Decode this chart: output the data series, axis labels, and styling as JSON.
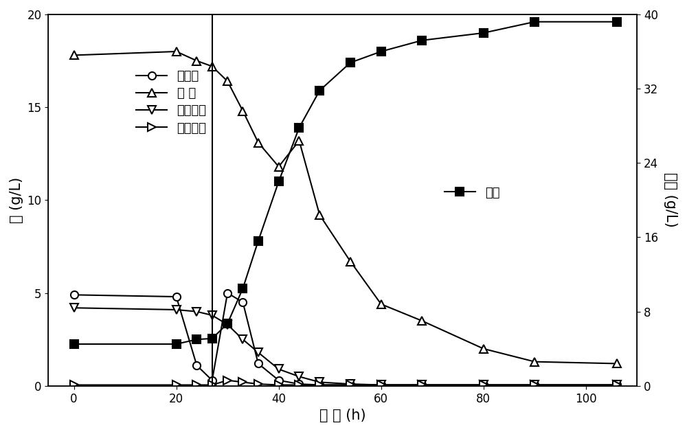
{
  "title": "",
  "xlabel": "时 间 (h)",
  "ylabel_left": "糖 (g/L)",
  "ylabel_right": "乳酸 (g/L)",
  "xlim": [
    -5,
    110
  ],
  "ylim_left": [
    0,
    20
  ],
  "ylim_right": [
    0,
    40
  ],
  "yticks_left": [
    0,
    5,
    10,
    15,
    20
  ],
  "yticks_right": [
    0,
    8,
    16,
    24,
    32,
    40
  ],
  "xticks": [
    0,
    20,
    40,
    60,
    80,
    100
  ],
  "vline_x": 27,
  "glucose": {
    "x": [
      0,
      20,
      24,
      27,
      30,
      33,
      36,
      40,
      44,
      48,
      54,
      60,
      68,
      80,
      90,
      106
    ],
    "y": [
      4.9,
      4.8,
      1.1,
      0.3,
      5.0,
      4.5,
      1.2,
      0.3,
      0.1,
      0.05,
      0.05,
      0.05,
      0.05,
      0.05,
      0.05,
      0.05
    ],
    "label": "葡萄糖",
    "marker": "o",
    "color": "black",
    "linestyle": "-"
  },
  "xylose": {
    "x": [
      0,
      20,
      24,
      27,
      30,
      33,
      36,
      40,
      44,
      48,
      54,
      60,
      68,
      80,
      90,
      106
    ],
    "y": [
      17.8,
      18.0,
      17.5,
      17.2,
      16.4,
      14.8,
      13.1,
      11.8,
      13.2,
      9.2,
      6.7,
      4.4,
      3.5,
      2.0,
      1.3,
      1.2
    ],
    "label": "木 糖",
    "marker": "^",
    "color": "black",
    "linestyle": "-"
  },
  "arabinose": {
    "x": [
      0,
      20,
      24,
      27,
      30,
      33,
      36,
      40,
      44,
      48,
      54,
      60,
      68,
      80,
      90,
      106
    ],
    "y": [
      4.2,
      4.1,
      4.0,
      3.8,
      3.3,
      2.5,
      1.8,
      0.9,
      0.5,
      0.2,
      0.1,
      0.05,
      0.05,
      0.05,
      0.05,
      0.05
    ],
    "label": "阿拉伯糖",
    "marker": "v",
    "color": "black",
    "linestyle": "-"
  },
  "cellobiose": {
    "x": [
      0,
      20,
      24,
      27,
      30,
      33,
      36,
      40,
      44,
      48,
      54,
      60,
      68,
      80,
      90,
      106
    ],
    "y": [
      0.05,
      0.05,
      0.05,
      0.05,
      0.3,
      0.2,
      0.1,
      0.05,
      0.05,
      0.05,
      0.05,
      0.05,
      0.05,
      0.05,
      0.05,
      0.05
    ],
    "label": "纤维二糖",
    "marker": ">",
    "color": "black",
    "linestyle": "-"
  },
  "lactic_acid": {
    "x": [
      0,
      20,
      24,
      27,
      30,
      33,
      36,
      40,
      44,
      48,
      54,
      60,
      68,
      80,
      90,
      106
    ],
    "y": [
      4.5,
      4.5,
      5.0,
      5.1,
      6.7,
      10.5,
      15.6,
      22.0,
      27.8,
      31.8,
      34.8,
      36.0,
      37.2,
      38.0,
      39.2,
      39.2
    ],
    "label": "乳酸",
    "marker": "s",
    "color": "black",
    "linestyle": "-"
  },
  "background_color": "#ffffff",
  "marker_size": 8,
  "linewidth": 1.5
}
